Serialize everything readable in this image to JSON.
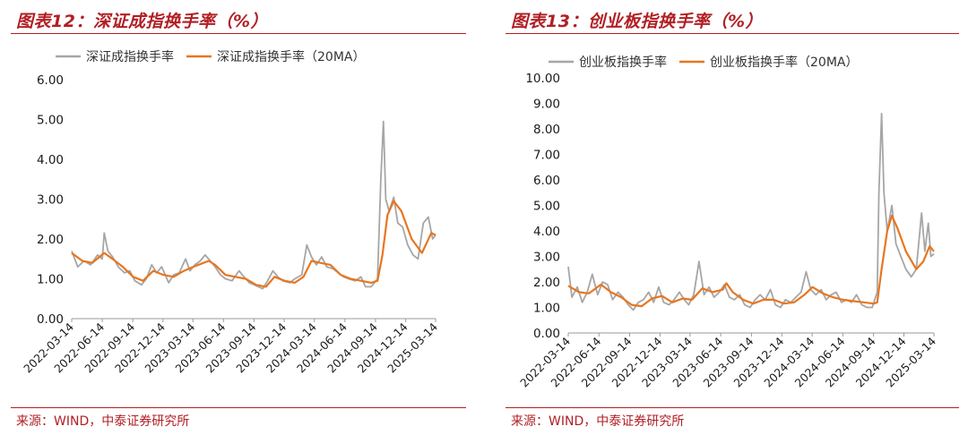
{
  "source": "来源：WIND，中泰证券研究所",
  "chart_data": [
    {
      "type": "line",
      "title": "图表12：深证成指换手率（%）",
      "ylim": [
        0,
        6
      ],
      "yticks": [
        "0.00",
        "1.00",
        "2.00",
        "3.00",
        "4.00",
        "5.00",
        "6.00"
      ],
      "xticks": [
        "2022-03-14",
        "2022-06-14",
        "2022-09-14",
        "2022-12-14",
        "2023-03-14",
        "2023-06-14",
        "2023-09-14",
        "2023-12-14",
        "2024-03-14",
        "2024-06-14",
        "2024-09-14",
        "2024-12-14",
        "2025-03-14"
      ],
      "grid": false,
      "legend_position": "top",
      "series": [
        {
          "name": "深证成指换手率",
          "color": "#a6a6a6",
          "points": [
            [
              "2022-03-14",
              1.7
            ],
            [
              "2022-04-01",
              1.3
            ],
            [
              "2022-04-20",
              1.45
            ],
            [
              "2022-05-10",
              1.35
            ],
            [
              "2022-05-31",
              1.6
            ],
            [
              "2022-06-14",
              1.5
            ],
            [
              "2022-06-20",
              2.15
            ],
            [
              "2022-07-01",
              1.7
            ],
            [
              "2022-07-15",
              1.55
            ],
            [
              "2022-08-01",
              1.3
            ],
            [
              "2022-08-20",
              1.15
            ],
            [
              "2022-09-05",
              1.2
            ],
            [
              "2022-09-20",
              0.95
            ],
            [
              "2022-10-10",
              0.85
            ],
            [
              "2022-10-25",
              1.0
            ],
            [
              "2022-11-10",
              1.35
            ],
            [
              "2022-11-25",
              1.15
            ],
            [
              "2022-12-10",
              1.3
            ],
            [
              "2022-12-31",
              0.9
            ],
            [
              "2023-01-15",
              1.1
            ],
            [
              "2023-02-01",
              1.15
            ],
            [
              "2023-02-20",
              1.5
            ],
            [
              "2023-03-05",
              1.2
            ],
            [
              "2023-03-20",
              1.35
            ],
            [
              "2023-04-05",
              1.45
            ],
            [
              "2023-04-20",
              1.6
            ],
            [
              "2023-05-05",
              1.45
            ],
            [
              "2023-05-20",
              1.3
            ],
            [
              "2023-06-05",
              1.1
            ],
            [
              "2023-06-20",
              1.0
            ],
            [
              "2023-07-10",
              0.95
            ],
            [
              "2023-07-31",
              1.2
            ],
            [
              "2023-08-15",
              1.05
            ],
            [
              "2023-08-31",
              0.9
            ],
            [
              "2023-09-15",
              0.85
            ],
            [
              "2023-10-10",
              0.75
            ],
            [
              "2023-10-25",
              0.95
            ],
            [
              "2023-11-10",
              1.2
            ],
            [
              "2023-11-25",
              1.05
            ],
            [
              "2023-12-10",
              0.95
            ],
            [
              "2023-12-31",
              0.9
            ],
            [
              "2024-01-15",
              1.0
            ],
            [
              "2024-02-05",
              1.1
            ],
            [
              "2024-02-20",
              1.85
            ],
            [
              "2024-03-05",
              1.55
            ],
            [
              "2024-03-20",
              1.35
            ],
            [
              "2024-04-05",
              1.55
            ],
            [
              "2024-04-20",
              1.3
            ],
            [
              "2024-05-10",
              1.25
            ],
            [
              "2024-05-25",
              1.15
            ],
            [
              "2024-06-10",
              1.05
            ],
            [
              "2024-06-25",
              1.0
            ],
            [
              "2024-07-15",
              0.95
            ],
            [
              "2024-08-01",
              1.05
            ],
            [
              "2024-08-15",
              0.8
            ],
            [
              "2024-09-01",
              0.8
            ],
            [
              "2024-09-20",
              1.0
            ],
            [
              "2024-09-30",
              3.5
            ],
            [
              "2024-10-08",
              4.95
            ],
            [
              "2024-10-15",
              3.0
            ],
            [
              "2024-10-25",
              2.7
            ],
            [
              "2024-11-08",
              3.05
            ],
            [
              "2024-11-20",
              2.4
            ],
            [
              "2024-12-05",
              2.3
            ],
            [
              "2024-12-20",
              1.85
            ],
            [
              "2025-01-05",
              1.6
            ],
            [
              "2025-01-20",
              1.5
            ],
            [
              "2025-02-05",
              2.4
            ],
            [
              "2025-02-20",
              2.55
            ],
            [
              "2025-03-05",
              2.0
            ],
            [
              "2025-03-14",
              2.1
            ]
          ]
        },
        {
          "name": "深证成指换手率（20MA）",
          "color": "#e8761f",
          "points": [
            [
              "2022-03-14",
              1.65
            ],
            [
              "2022-04-15",
              1.45
            ],
            [
              "2022-05-15",
              1.4
            ],
            [
              "2022-06-20",
              1.65
            ],
            [
              "2022-07-15",
              1.5
            ],
            [
              "2022-08-15",
              1.3
            ],
            [
              "2022-09-15",
              1.05
            ],
            [
              "2022-10-15",
              0.95
            ],
            [
              "2022-11-15",
              1.2
            ],
            [
              "2022-12-15",
              1.1
            ],
            [
              "2023-01-15",
              1.05
            ],
            [
              "2023-02-15",
              1.2
            ],
            [
              "2023-03-15",
              1.3
            ],
            [
              "2023-04-15",
              1.4
            ],
            [
              "2023-05-01",
              1.45
            ],
            [
              "2023-05-20",
              1.35
            ],
            [
              "2023-06-20",
              1.1
            ],
            [
              "2023-07-20",
              1.05
            ],
            [
              "2023-08-20",
              1.0
            ],
            [
              "2023-09-20",
              0.85
            ],
            [
              "2023-10-20",
              0.8
            ],
            [
              "2023-11-15",
              1.05
            ],
            [
              "2023-12-15",
              0.95
            ],
            [
              "2024-01-15",
              0.9
            ],
            [
              "2024-02-10",
              1.05
            ],
            [
              "2024-03-05",
              1.45
            ],
            [
              "2024-04-01",
              1.4
            ],
            [
              "2024-05-01",
              1.35
            ],
            [
              "2024-06-01",
              1.1
            ],
            [
              "2024-07-01",
              1.0
            ],
            [
              "2024-08-01",
              0.95
            ],
            [
              "2024-09-01",
              0.9
            ],
            [
              "2024-09-20",
              0.95
            ],
            [
              "2024-10-05",
              1.6
            ],
            [
              "2024-10-20",
              2.6
            ],
            [
              "2024-11-08",
              2.95
            ],
            [
              "2024-12-01",
              2.7
            ],
            [
              "2025-01-01",
              2.0
            ],
            [
              "2025-02-01",
              1.65
            ],
            [
              "2025-03-01",
              2.15
            ],
            [
              "2025-03-14",
              2.1
            ]
          ]
        }
      ]
    },
    {
      "type": "line",
      "title": "图表13：创业板指换手率（%）",
      "ylim": [
        0,
        10
      ],
      "yticks": [
        "0.00",
        "1.00",
        "2.00",
        "3.00",
        "4.00",
        "5.00",
        "6.00",
        "7.00",
        "8.00",
        "9.00",
        "10.00"
      ],
      "xticks": [
        "2022-03-14",
        "2022-06-14",
        "2022-09-14",
        "2022-12-14",
        "2023-03-14",
        "2023-06-14",
        "2023-09-14",
        "2023-12-14",
        "2024-03-14",
        "2024-06-14",
        "2024-09-14",
        "2024-12-14",
        "2025-03-14"
      ],
      "grid": false,
      "legend_position": "top",
      "series": [
        {
          "name": "创业板指换手率",
          "color": "#a6a6a6",
          "points": [
            [
              "2022-03-14",
              2.6
            ],
            [
              "2022-03-25",
              1.4
            ],
            [
              "2022-04-10",
              1.8
            ],
            [
              "2022-04-25",
              1.2
            ],
            [
              "2022-05-10",
              1.6
            ],
            [
              "2022-05-25",
              2.3
            ],
            [
              "2022-06-10",
              1.5
            ],
            [
              "2022-06-25",
              2.0
            ],
            [
              "2022-07-10",
              1.9
            ],
            [
              "2022-07-25",
              1.3
            ],
            [
              "2022-08-10",
              1.6
            ],
            [
              "2022-08-25",
              1.4
            ],
            [
              "2022-09-10",
              1.1
            ],
            [
              "2022-09-25",
              0.9
            ],
            [
              "2022-10-10",
              1.2
            ],
            [
              "2022-10-25",
              1.3
            ],
            [
              "2022-11-10",
              1.6
            ],
            [
              "2022-11-25",
              1.2
            ],
            [
              "2022-12-10",
              1.8
            ],
            [
              "2022-12-25",
              1.2
            ],
            [
              "2023-01-10",
              1.1
            ],
            [
              "2023-01-25",
              1.3
            ],
            [
              "2023-02-10",
              1.6
            ],
            [
              "2023-02-25",
              1.3
            ],
            [
              "2023-03-10",
              1.1
            ],
            [
              "2023-03-25",
              1.5
            ],
            [
              "2023-04-10",
              2.8
            ],
            [
              "2023-04-25",
              1.5
            ],
            [
              "2023-05-10",
              1.8
            ],
            [
              "2023-05-25",
              1.4
            ],
            [
              "2023-06-10",
              1.6
            ],
            [
              "2023-06-25",
              1.9
            ],
            [
              "2023-07-10",
              1.4
            ],
            [
              "2023-07-25",
              1.3
            ],
            [
              "2023-08-10",
              1.5
            ],
            [
              "2023-08-25",
              1.1
            ],
            [
              "2023-09-10",
              1.0
            ],
            [
              "2023-09-25",
              1.3
            ],
            [
              "2023-10-10",
              1.5
            ],
            [
              "2023-10-25",
              1.3
            ],
            [
              "2023-11-10",
              1.7
            ],
            [
              "2023-11-25",
              1.1
            ],
            [
              "2023-12-10",
              1.0
            ],
            [
              "2023-12-25",
              1.3
            ],
            [
              "2024-01-10",
              1.2
            ],
            [
              "2024-01-25",
              1.4
            ],
            [
              "2024-02-10",
              1.6
            ],
            [
              "2024-02-25",
              2.4
            ],
            [
              "2024-03-10",
              1.7
            ],
            [
              "2024-03-25",
              1.5
            ],
            [
              "2024-04-10",
              1.7
            ],
            [
              "2024-04-25",
              1.3
            ],
            [
              "2024-05-10",
              1.5
            ],
            [
              "2024-05-25",
              1.6
            ],
            [
              "2024-06-10",
              1.2
            ],
            [
              "2024-06-25",
              1.3
            ],
            [
              "2024-07-10",
              1.2
            ],
            [
              "2024-07-25",
              1.5
            ],
            [
              "2024-08-10",
              1.1
            ],
            [
              "2024-08-25",
              1.0
            ],
            [
              "2024-09-10",
              1.0
            ],
            [
              "2024-09-25",
              1.6
            ],
            [
              "2024-09-30",
              5.5
            ],
            [
              "2024-10-08",
              8.6
            ],
            [
              "2024-10-15",
              5.5
            ],
            [
              "2024-10-25",
              4.0
            ],
            [
              "2024-11-08",
              5.0
            ],
            [
              "2024-11-20",
              3.5
            ],
            [
              "2024-12-05",
              3.0
            ],
            [
              "2024-12-20",
              2.5
            ],
            [
              "2025-01-05",
              2.2
            ],
            [
              "2025-01-20",
              2.5
            ],
            [
              "2025-02-05",
              4.7
            ],
            [
              "2025-02-15",
              3.2
            ],
            [
              "2025-02-25",
              4.3
            ],
            [
              "2025-03-05",
              3.0
            ],
            [
              "2025-03-14",
              3.1
            ]
          ]
        },
        {
          "name": "创业板指换手率（20MA）",
          "color": "#e8761f",
          "points": [
            [
              "2022-03-14",
              1.85
            ],
            [
              "2022-04-15",
              1.6
            ],
            [
              "2022-05-15",
              1.55
            ],
            [
              "2022-06-20",
              1.9
            ],
            [
              "2022-07-20",
              1.6
            ],
            [
              "2022-08-20",
              1.4
            ],
            [
              "2022-09-20",
              1.1
            ],
            [
              "2022-10-20",
              1.05
            ],
            [
              "2022-11-20",
              1.35
            ],
            [
              "2022-12-20",
              1.45
            ],
            [
              "2023-01-20",
              1.2
            ],
            [
              "2023-02-20",
              1.35
            ],
            [
              "2023-03-20",
              1.3
            ],
            [
              "2023-04-20",
              1.75
            ],
            [
              "2023-05-20",
              1.6
            ],
            [
              "2023-06-20",
              1.7
            ],
            [
              "2023-07-01",
              1.95
            ],
            [
              "2023-07-20",
              1.6
            ],
            [
              "2023-08-20",
              1.3
            ],
            [
              "2023-09-20",
              1.15
            ],
            [
              "2023-10-20",
              1.3
            ],
            [
              "2023-11-20",
              1.3
            ],
            [
              "2023-12-20",
              1.15
            ],
            [
              "2024-01-20",
              1.2
            ],
            [
              "2024-02-20",
              1.5
            ],
            [
              "2024-03-15",
              1.8
            ],
            [
              "2024-04-15",
              1.55
            ],
            [
              "2024-05-15",
              1.4
            ],
            [
              "2024-06-15",
              1.3
            ],
            [
              "2024-07-15",
              1.25
            ],
            [
              "2024-08-15",
              1.2
            ],
            [
              "2024-09-15",
              1.15
            ],
            [
              "2024-09-25",
              1.2
            ],
            [
              "2024-10-08",
              2.5
            ],
            [
              "2024-10-25",
              4.0
            ],
            [
              "2024-11-08",
              4.6
            ],
            [
              "2024-11-25",
              4.1
            ],
            [
              "2024-12-20",
              3.2
            ],
            [
              "2025-01-20",
              2.5
            ],
            [
              "2025-02-10",
              2.8
            ],
            [
              "2025-03-01",
              3.4
            ],
            [
              "2025-03-14",
              3.2
            ]
          ]
        }
      ]
    }
  ]
}
